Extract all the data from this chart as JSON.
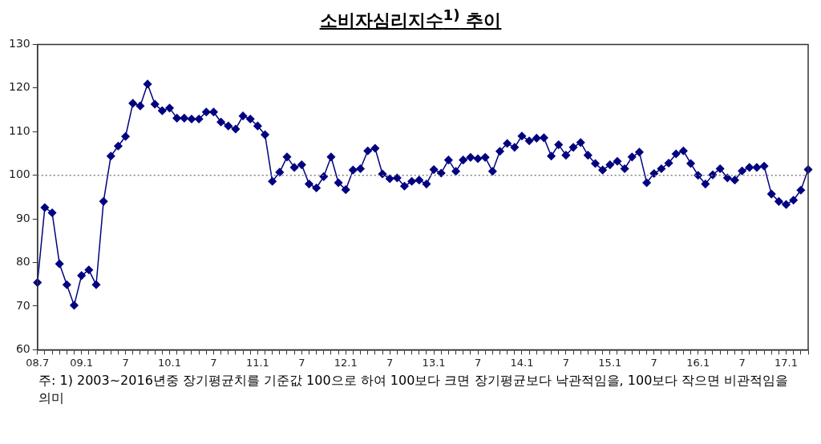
{
  "chart_data": {
    "type": "line",
    "title": "소비자심리지수$^{1)}$ 추이",
    "categories": [
      "08.7",
      null,
      null,
      null,
      null,
      null,
      "09.1",
      null,
      null,
      null,
      null,
      null,
      "7",
      null,
      null,
      null,
      null,
      null,
      "10.1",
      null,
      null,
      null,
      null,
      null,
      "7",
      null,
      null,
      null,
      null,
      null,
      "11.1",
      null,
      null,
      null,
      null,
      null,
      "7",
      null,
      null,
      null,
      null,
      null,
      "12.1",
      null,
      null,
      null,
      null,
      null,
      "7",
      null,
      null,
      null,
      null,
      null,
      "13.1",
      null,
      null,
      null,
      null,
      null,
      "7",
      null,
      null,
      null,
      null,
      null,
      "14.1",
      null,
      null,
      null,
      null,
      null,
      "7",
      null,
      null,
      null,
      null,
      null,
      "15.1",
      null,
      null,
      null,
      null,
      null,
      "7",
      null,
      null,
      null,
      null,
      null,
      "16.1",
      null,
      null,
      null,
      null,
      null,
      "7",
      null,
      null,
      null,
      null,
      null,
      "17.1",
      null,
      null,
      null
    ],
    "series": [
      {
        "color": "#000080",
        "values": [
          75.4,
          92.6,
          91.4,
          79.7,
          74.9,
          70.2,
          77.0,
          78.3,
          74.9,
          94.0,
          104.4,
          106.7,
          108.9,
          116.5,
          115.9,
          120.9,
          116.3,
          114.8,
          115.4,
          113.1,
          113.1,
          112.9,
          112.9,
          114.5,
          114.5,
          112.2,
          111.3,
          110.6,
          113.6,
          112.9,
          111.3,
          109.3,
          98.6,
          100.7,
          104.2,
          101.8,
          102.4,
          98.0,
          97.1,
          99.7,
          104.2,
          98.3,
          96.7,
          101.2,
          101.5,
          105.6,
          106.2,
          100.3,
          99.2,
          99.4,
          97.5,
          98.6,
          98.9,
          98.0,
          101.3,
          100.5,
          103.5,
          100.9,
          103.5,
          104.1,
          103.8,
          104.1,
          100.9,
          105.5,
          107.3,
          106.4,
          109.0,
          107.9,
          108.5,
          108.6,
          104.4,
          107.0,
          104.6,
          106.4,
          107.5,
          104.6,
          102.7,
          101.2,
          102.4,
          103.2,
          101.5,
          104.2,
          105.3,
          98.3,
          100.4,
          101.5,
          102.8,
          104.9,
          105.6,
          102.7,
          100.0,
          98.0,
          100.1,
          101.5,
          99.4,
          98.9,
          101.0,
          101.8,
          101.8,
          102.1,
          95.7,
          94.0,
          93.3,
          94.3,
          96.6,
          101.3
        ]
      }
    ],
    "ylim": [
      60,
      130
    ],
    "yticks": [
      60,
      70,
      80,
      90,
      100,
      110,
      120,
      130
    ],
    "ref_lines": [
      {
        "axis": "y",
        "value": 100,
        "color": "#808080",
        "line_style": "dotted"
      }
    ],
    "marker": "diamond",
    "line_style": "solid",
    "grid": false,
    "legend": false,
    "annotations": [
      "주: 1) 2003~2016년중 장기평균치를 기준값 100으로 하여 100보다 크면 장기평균보다 낙관적임을, 100보다 작으면 비관적임을 의미"
    ]
  }
}
